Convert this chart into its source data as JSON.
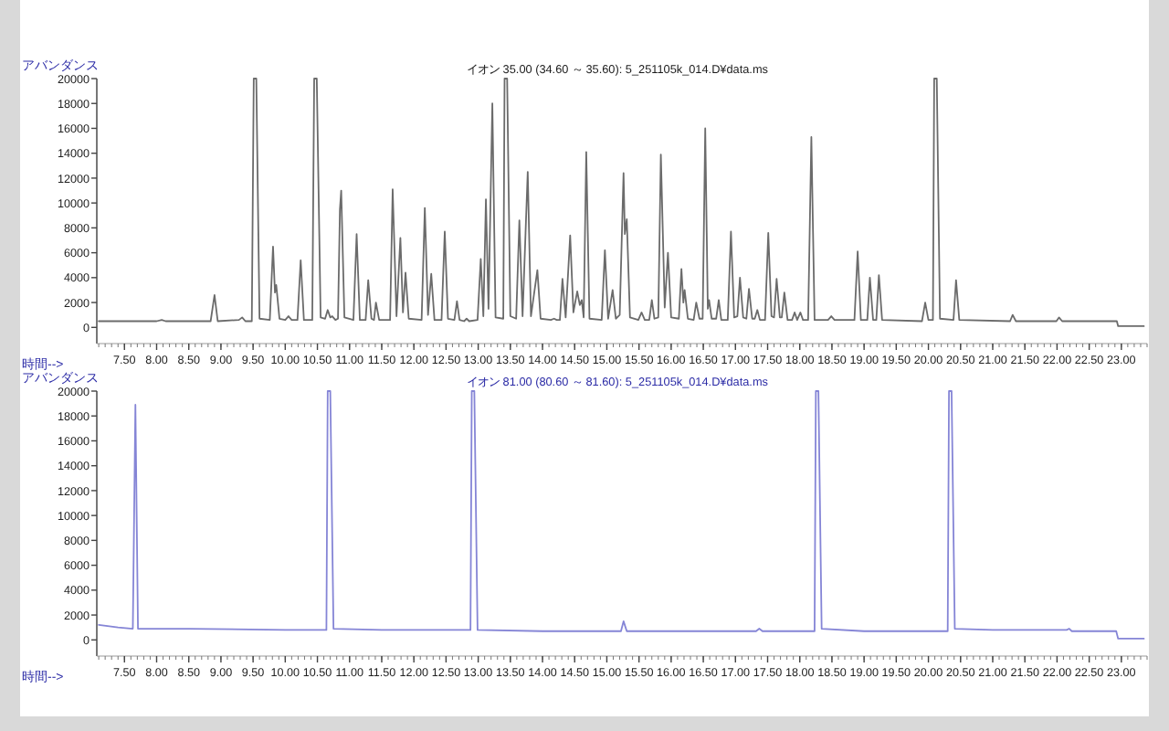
{
  "chart_data": [
    {
      "type": "line",
      "title": "イオン 35.00 (34.60 ～ 35.60): 5_251105k_014.D¥data.ms",
      "ylabel": "アバンダンス",
      "xlabel": "時間-->",
      "xlim": [
        7.07,
        23.4
      ],
      "ylim": [
        -1300,
        20000
      ],
      "xticks": [
        {
          "value": 7.5,
          "label": "7.50"
        },
        {
          "value": 8,
          "label": "8.00"
        },
        {
          "value": 8.5,
          "label": "8.50"
        },
        {
          "value": 9,
          "label": "9.00"
        },
        {
          "value": 9.5,
          "label": "9.50"
        },
        {
          "value": 10,
          "label": "10.00"
        },
        {
          "value": 10.5,
          "label": "10.50"
        },
        {
          "value": 11,
          "label": "11.00"
        },
        {
          "value": 11.5,
          "label": "11.50"
        },
        {
          "value": 12,
          "label": "12.00"
        },
        {
          "value": 12.5,
          "label": "12.50"
        },
        {
          "value": 13,
          "label": "13.00"
        },
        {
          "value": 13.5,
          "label": "13.50"
        },
        {
          "value": 14,
          "label": "14.00"
        },
        {
          "value": 14.5,
          "label": "14.50"
        },
        {
          "value": 15,
          "label": "15.00"
        },
        {
          "value": 15.5,
          "label": "15.50"
        },
        {
          "value": 16,
          "label": "16.00"
        },
        {
          "value": 16.5,
          "label": "16.50"
        },
        {
          "value": 17,
          "label": "17.00"
        },
        {
          "value": 17.5,
          "label": "17.50"
        },
        {
          "value": 18,
          "label": "18.00"
        },
        {
          "value": 18.5,
          "label": "18.50"
        },
        {
          "value": 19,
          "label": "19.00"
        },
        {
          "value": 19.5,
          "label": "19.50"
        },
        {
          "value": 20,
          "label": "20.00"
        },
        {
          "value": 20.5,
          "label": "20.50"
        },
        {
          "value": 21,
          "label": "21.00"
        },
        {
          "value": 21.5,
          "label": "21.50"
        },
        {
          "value": 22,
          "label": "22.00"
        },
        {
          "value": 22.5,
          "label": "22.50"
        },
        {
          "value": 23,
          "label": "23.00"
        }
      ],
      "yticks": [
        0,
        2000,
        4000,
        6000,
        8000,
        10000,
        12000,
        14000,
        16000,
        18000,
        20000
      ],
      "series": [
        {
          "color": "#6b6b6b",
          "x": [
            7.1,
            8.0,
            8.08,
            8.14,
            8.84,
            8.9,
            8.95,
            9.28,
            9.33,
            9.38,
            9.48,
            9.51,
            9.55,
            9.6,
            9.76,
            9.81,
            9.84,
            9.86,
            9.91,
            10.0,
            10.05,
            10.1,
            10.19,
            10.24,
            10.29,
            10.42,
            10.45,
            10.49,
            10.55,
            10.62,
            10.66,
            10.7,
            10.73,
            10.78,
            10.82,
            10.85,
            10.87,
            10.92,
            11.06,
            11.11,
            11.16,
            11.25,
            11.29,
            11.34,
            11.38,
            11.41,
            11.46,
            11.63,
            11.67,
            11.73,
            11.79,
            11.83,
            11.87,
            11.92,
            12.12,
            12.17,
            12.22,
            12.27,
            12.32,
            12.43,
            12.48,
            12.53,
            12.63,
            12.67,
            12.71,
            12.78,
            12.82,
            12.86,
            12.99,
            13.04,
            13.08,
            13.12,
            13.16,
            13.22,
            13.27,
            13.39,
            13.41,
            13.45,
            13.5,
            13.59,
            13.64,
            13.69,
            13.77,
            13.82,
            13.92,
            13.97,
            14.13,
            14.18,
            14.22,
            14.27,
            14.31,
            14.36,
            14.43,
            14.48,
            14.54,
            14.58,
            14.61,
            14.64,
            14.68,
            14.73,
            14.92,
            14.97,
            15.02,
            15.09,
            15.14,
            15.2,
            15.26,
            15.28,
            15.31,
            15.36,
            15.49,
            15.54,
            15.59,
            15.66,
            15.7,
            15.74,
            15.8,
            15.84,
            15.9,
            15.95,
            16.0,
            16.12,
            16.16,
            16.19,
            16.21,
            16.26,
            16.35,
            16.39,
            16.44,
            16.49,
            16.53,
            16.57,
            16.59,
            16.63,
            16.7,
            16.74,
            16.78,
            16.88,
            16.93,
            16.98,
            17.03,
            17.07,
            17.12,
            17.17,
            17.21,
            17.26,
            17.3,
            17.34,
            17.38,
            17.46,
            17.51,
            17.56,
            17.6,
            17.64,
            17.69,
            17.72,
            17.76,
            17.81,
            17.88,
            17.92,
            17.96,
            18.01,
            18.05,
            18.13,
            18.18,
            18.23,
            18.44,
            18.49,
            18.54,
            18.85,
            18.9,
            18.95,
            19.05,
            19.09,
            19.14,
            19.19,
            19.23,
            19.28,
            19.9,
            19.95,
            20.0,
            20.07,
            20.09,
            20.13,
            20.18,
            20.39,
            20.43,
            20.48,
            21.27,
            21.31,
            21.36,
            21.99,
            22.03,
            22.08,
            22.93,
            22.95,
            23.35
          ],
          "values": [
            500,
            500,
            600,
            500,
            500,
            2600,
            500,
            600,
            800,
            500,
            500,
            20000,
            20000,
            700,
            600,
            6500,
            2800,
            3400,
            700,
            600,
            900,
            600,
            600,
            5400,
            600,
            600,
            20000,
            20000,
            800,
            700,
            1400,
            800,
            900,
            600,
            700,
            9500,
            11000,
            800,
            600,
            7500,
            600,
            600,
            3800,
            700,
            600,
            2000,
            600,
            600,
            11100,
            900,
            7200,
            1200,
            4400,
            700,
            600,
            9600,
            1000,
            4300,
            600,
            600,
            7700,
            700,
            600,
            2100,
            600,
            500,
            700,
            500,
            600,
            5500,
            900,
            10300,
            1500,
            18000,
            800,
            700,
            20000,
            20000,
            900,
            700,
            8600,
            900,
            12500,
            900,
            4600,
            700,
            600,
            700,
            600,
            600,
            3900,
            800,
            7400,
            1200,
            2900,
            1800,
            2200,
            800,
            14100,
            700,
            600,
            6200,
            700,
            3000,
            700,
            1000,
            12400,
            7500,
            8700,
            800,
            600,
            1200,
            600,
            600,
            2200,
            700,
            800,
            13900,
            1600,
            6000,
            800,
            700,
            4700,
            2000,
            3000,
            700,
            600,
            2000,
            700,
            700,
            16000,
            1500,
            2200,
            700,
            700,
            2200,
            600,
            600,
            7700,
            800,
            900,
            4000,
            800,
            700,
            3100,
            700,
            700,
            1400,
            600,
            600,
            7600,
            900,
            800,
            3900,
            800,
            800,
            2800,
            600,
            600,
            1200,
            600,
            1200,
            600,
            600,
            15300,
            600,
            600,
            900,
            600,
            600,
            6100,
            600,
            600,
            4000,
            600,
            600,
            4200,
            600,
            500,
            2000,
            600,
            600,
            20000,
            20000,
            700,
            600,
            3800,
            600,
            500,
            1000,
            500,
            500,
            800,
            500,
            500,
            100,
            100
          ]
        }
      ]
    },
    {
      "type": "line",
      "title": "イオン 81.00 (80.60 ～ 81.60): 5_251105k_014.D¥data.ms",
      "ylabel": "アバンダンス",
      "xlabel": "時間-->",
      "xlim": [
        7.07,
        23.4
      ],
      "ylim": [
        -1300,
        20000
      ],
      "xticks": [
        {
          "value": 7.5,
          "label": "7.50"
        },
        {
          "value": 8,
          "label": "8.00"
        },
        {
          "value": 8.5,
          "label": "8.50"
        },
        {
          "value": 9,
          "label": "9.00"
        },
        {
          "value": 9.5,
          "label": "9.50"
        },
        {
          "value": 10,
          "label": "10.00"
        },
        {
          "value": 10.5,
          "label": "10.50"
        },
        {
          "value": 11,
          "label": "11.00"
        },
        {
          "value": 11.5,
          "label": "11.50"
        },
        {
          "value": 12,
          "label": "12.00"
        },
        {
          "value": 12.5,
          "label": "12.50"
        },
        {
          "value": 13,
          "label": "13.00"
        },
        {
          "value": 13.5,
          "label": "13.50"
        },
        {
          "value": 14,
          "label": "14.00"
        },
        {
          "value": 14.5,
          "label": "14.50"
        },
        {
          "value": 15,
          "label": "15.00"
        },
        {
          "value": 15.5,
          "label": "15.50"
        },
        {
          "value": 16,
          "label": "16.00"
        },
        {
          "value": 16.5,
          "label": "16.50"
        },
        {
          "value": 17,
          "label": "17.00"
        },
        {
          "value": 17.5,
          "label": "17.50"
        },
        {
          "value": 18,
          "label": "18.00"
        },
        {
          "value": 18.5,
          "label": "18.50"
        },
        {
          "value": 19,
          "label": "19.00"
        },
        {
          "value": 19.5,
          "label": "19.50"
        },
        {
          "value": 20,
          "label": "20.00"
        },
        {
          "value": 20.5,
          "label": "20.50"
        },
        {
          "value": 21,
          "label": "21.00"
        },
        {
          "value": 21.5,
          "label": "21.50"
        },
        {
          "value": 22,
          "label": "22.00"
        },
        {
          "value": 22.5,
          "label": "22.50"
        },
        {
          "value": 23,
          "label": "23.00"
        }
      ],
      "yticks": [
        0,
        2000,
        4000,
        6000,
        8000,
        10000,
        12000,
        14000,
        16000,
        18000,
        20000
      ],
      "series": [
        {
          "color": "#8585d6",
          "x": [
            7.1,
            7.4,
            7.63,
            7.67,
            7.71,
            8.5,
            10.0,
            10.64,
            10.66,
            10.7,
            10.75,
            11.5,
            12.88,
            12.9,
            12.94,
            12.99,
            14.0,
            15.22,
            15.26,
            15.31,
            17.32,
            17.37,
            17.42,
            18.23,
            18.25,
            18.29,
            18.34,
            19.0,
            20.3,
            20.32,
            20.36,
            20.41,
            21.0,
            22.15,
            22.19,
            22.23,
            22.92,
            22.95,
            23.35
          ],
          "values": [
            1200,
            1000,
            900,
            18900,
            900,
            900,
            800,
            800,
            20000,
            20000,
            900,
            800,
            800,
            20000,
            20000,
            800,
            700,
            700,
            1500,
            700,
            700,
            900,
            700,
            700,
            20000,
            20000,
            900,
            700,
            700,
            20000,
            20000,
            900,
            800,
            800,
            900,
            700,
            700,
            100,
            100
          ]
        }
      ]
    }
  ]
}
